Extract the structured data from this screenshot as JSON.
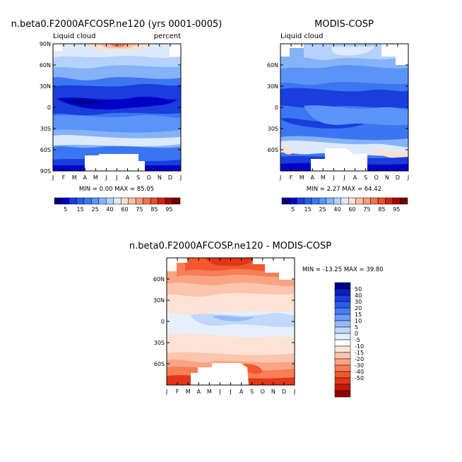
{
  "months": [
    "J",
    "F",
    "M",
    "A",
    "M",
    "J",
    "J",
    "A",
    "S",
    "O",
    "N",
    "D",
    "J"
  ],
  "colors": {
    "seq": [
      "#000080",
      "#0000c8",
      "#1a3ddc",
      "#2a5bea",
      "#3b76f2",
      "#5b94f7",
      "#86b2f8",
      "#b4d2fb",
      "#dceafc",
      "#fde0d0",
      "#fbc0a3",
      "#f89b78",
      "#f47150",
      "#e84b2c",
      "#d2230f",
      "#a80000",
      "#720000"
    ],
    "div": [
      "#000088",
      "#0a1fc2",
      "#1d3fdc",
      "#2d5ce8",
      "#4a7cf2",
      "#6f9cf6",
      "#96baf9",
      "#c1d7fb",
      "#e6f0fd",
      "#ffffff",
      "#fde3d6",
      "#fbc6ad",
      "#f9a583",
      "#f77e57",
      "#f2582f",
      "#e2361a",
      "#c01a07",
      "#8b0000"
    ]
  },
  "chart_data": [
    {
      "id": "model",
      "type": "heatmap",
      "title": "n.beta0.F2000AFCOSP.ne120 (yrs 0001-0005)",
      "left_label": "Liquid cloud",
      "right_label": "percent",
      "x_tick_labels": [
        "J",
        "F",
        "M",
        "A",
        "M",
        "J",
        "J",
        "A",
        "S",
        "O",
        "N",
        "D",
        "J"
      ],
      "y_tick_labels": [
        "90N",
        "60N",
        "30N",
        "0",
        "30S",
        "60S",
        "90S"
      ],
      "y_range": [
        -90,
        90
      ],
      "stats_text": "MIN =    0.00 MAX =   85.05",
      "min": 0.0,
      "max": 85.05,
      "legend_labels": [
        "5",
        "15",
        "25",
        "40",
        "60",
        "75",
        "85",
        "95"
      ]
    },
    {
      "id": "obs",
      "type": "heatmap",
      "title": "MODIS-COSP",
      "left_label": "Liquid cloud",
      "y_tick_labels": [
        "60N",
        "30N",
        "0",
        "30S",
        "60S"
      ],
      "y_range": [
        -90,
        90
      ],
      "stats_text": "MIN =    2.27 MAX =   64.42",
      "min": 2.27,
      "max": 64.42,
      "legend_labels": [
        "5",
        "15",
        "25",
        "40",
        "60",
        "75",
        "85",
        "95"
      ]
    },
    {
      "id": "diff",
      "type": "heatmap",
      "title": "n.beta0.F2000AFCOSP.ne120 - MODIS-COSP",
      "y_tick_labels": [
        "60N",
        "30N",
        "0",
        "30S",
        "60S"
      ],
      "y_range": [
        -90,
        90
      ],
      "stats_text": "MIN = -13.25 MAX =  39.80",
      "min": -13.25,
      "max": 39.8,
      "legend_labels": [
        "50",
        "40",
        "30",
        "20",
        "15",
        "10",
        "5",
        "0",
        "-5",
        "-10",
        "-15",
        "-20",
        "-30",
        "-40",
        "-50"
      ]
    }
  ]
}
